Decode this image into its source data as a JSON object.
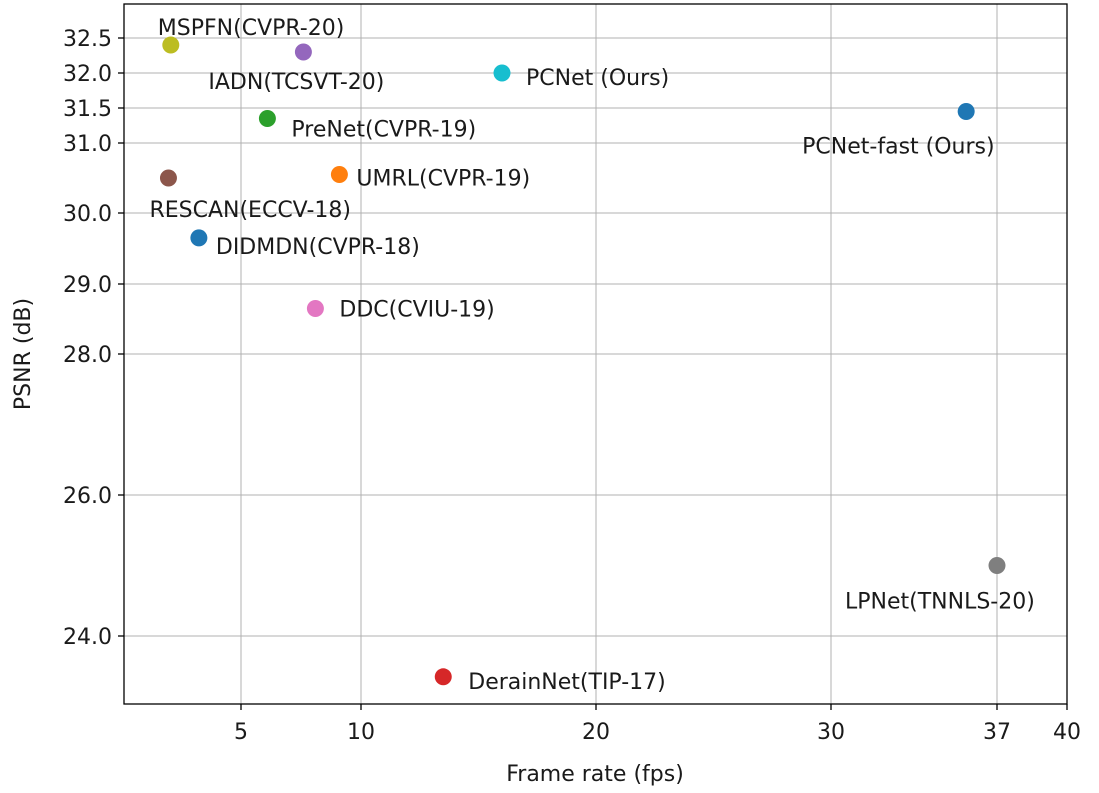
{
  "chart_data": {
    "type": "scatter",
    "title": "",
    "xlabel": "Frame rate (fps)",
    "ylabel": "PSNR (dB)",
    "xlim": [
      0,
      40
    ],
    "ylim": [
      23.0,
      32.9
    ],
    "x_ticks": [
      5,
      10,
      20,
      30,
      37,
      40
    ],
    "y_ticks": [
      24.0,
      26.0,
      28.0,
      29.0,
      30.0,
      31.0,
      31.5,
      32.0,
      32.5
    ],
    "y_tick_labels": [
      "24.0",
      "26.0",
      "28.0",
      "29.0",
      "30.0",
      "31.0",
      "31.5",
      "32.0",
      "32.5"
    ],
    "grid": true,
    "points": [
      {
        "label": "MSPFN(CVPR-20)",
        "x": 2.0,
        "y": 32.4,
        "color": "#bcbd22"
      },
      {
        "label": "IADN(TCSVT-20)",
        "x": 7.6,
        "y": 32.3,
        "color": "#9467bd"
      },
      {
        "label": "PCNet (Ours)",
        "x": 16.0,
        "y": 32.0,
        "color": "#17becf"
      },
      {
        "label": "PCNet-fast (Ours)",
        "x": 35.7,
        "y": 31.45,
        "color": "#1f77b4"
      },
      {
        "label": "PreNet(CVPR-19)",
        "x": 6.1,
        "y": 31.35,
        "color": "#2ca02c"
      },
      {
        "label": "RESCAN(ECCV-18)",
        "x": 1.9,
        "y": 30.5,
        "color": "#8c564b"
      },
      {
        "label": "UMRL(CVPR-19)",
        "x": 9.1,
        "y": 30.55,
        "color": "#ff7f0e"
      },
      {
        "label": "DIDMDN(CVPR-18)",
        "x": 3.2,
        "y": 29.65,
        "color": "#1f77b4"
      },
      {
        "label": "DDC(CVIU-19)",
        "x": 8.1,
        "y": 28.65,
        "color": "#e377c2"
      },
      {
        "label": "LPNet(TNNLS-20)",
        "x": 37.0,
        "y": 25.0,
        "color": "#7f7f7f"
      },
      {
        "label": "DerainNet(TIP-17)",
        "x": 13.5,
        "y": 23.4,
        "color": "#d62728"
      }
    ]
  }
}
